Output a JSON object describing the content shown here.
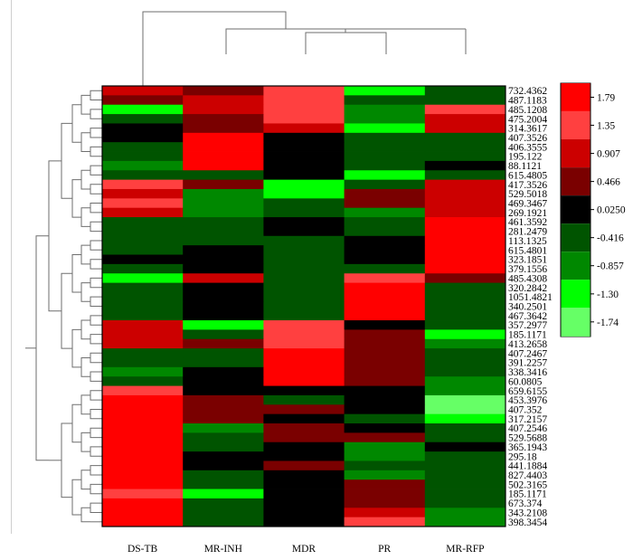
{
  "chart_data": {
    "type": "heatmap",
    "columns": [
      "DS-TB",
      "MR-INH",
      "MDR",
      "PR",
      "MR-RFP"
    ],
    "row_labels": [
      "732.4362",
      "487.1183",
      "485.1208",
      "475.2004",
      "314.3617",
      "407.3526",
      "406.3555",
      "195.122",
      "88.1121",
      "615.4805",
      "417.3526",
      "529.5018",
      "469.3467",
      "269.1921",
      "461.3592",
      "281.2479",
      "113.1325",
      "615.4801",
      "323.1851",
      "379.1556",
      "485.4308",
      "320.2842",
      "1051.4821",
      "340.2501",
      "467.3642",
      "357.2977",
      "185.1171",
      "413.2658",
      "407.2467",
      "391.2257",
      "338.3416",
      "60.0805",
      "659.6155",
      "453.3976",
      "407.352",
      "317.2157",
      "407.2546",
      "529.5688",
      "365.1943",
      "295.18",
      "441.1884",
      "827.4403",
      "502.3165",
      "185.1171",
      "673.374",
      "343.2108",
      "398.3454"
    ],
    "color_scale": {
      "breaks": [
        "1.79",
        "1.35",
        "0.907",
        "0.466",
        "0.0250",
        "-0.416",
        "-0.857",
        "-1.30",
        "-1.74"
      ],
      "colors": [
        "#ff0000",
        "#ff4040",
        "#cc0000",
        "#7a0000",
        "#000000",
        "#005400",
        "#008800",
        "#00ff00",
        "#66ff66"
      ],
      "value_range": [
        -1.97,
        2.01
      ]
    },
    "values": [
      [
        0.9,
        0.45,
        1.3,
        -1.5,
        -0.5
      ],
      [
        0.45,
        0.9,
        1.3,
        -0.5,
        -0.45
      ],
      [
        -1.5,
        0.9,
        1.3,
        -0.9,
        1.3
      ],
      [
        -0.5,
        0.45,
        1.3,
        -1.0,
        0.9
      ],
      [
        0.0,
        0.45,
        0.9,
        -1.5,
        0.9
      ],
      [
        0.0,
        1.8,
        0.0,
        -0.5,
        -0.45
      ],
      [
        -0.5,
        1.8,
        0.0,
        -0.5,
        -0.5
      ],
      [
        -0.5,
        1.8,
        0.0,
        -0.5,
        -0.5
      ],
      [
        -0.9,
        1.8,
        0.0,
        -0.5,
        0.0
      ],
      [
        -0.5,
        -0.5,
        0.0,
        -1.5,
        -0.5
      ],
      [
        1.3,
        0.45,
        -1.5,
        -0.5,
        0.9
      ],
      [
        0.9,
        -0.9,
        -1.5,
        0.45,
        0.9
      ],
      [
        1.3,
        -0.9,
        -0.5,
        0.45,
        0.9
      ],
      [
        0.9,
        -0.9,
        -0.5,
        -0.9,
        0.9
      ],
      [
        -0.5,
        -0.5,
        0.0,
        -0.5,
        1.8
      ],
      [
        -0.5,
        -0.5,
        0.0,
        -0.5,
        1.8
      ],
      [
        -0.5,
        -0.5,
        -0.5,
        0.0,
        1.8
      ],
      [
        -0.5,
        0.0,
        -0.5,
        0.0,
        1.8
      ],
      [
        0.0,
        0.0,
        -0.5,
        0.0,
        1.8
      ],
      [
        -0.5,
        0.0,
        -0.5,
        -0.5,
        1.8
      ],
      [
        -1.5,
        0.9,
        -0.5,
        1.3,
        0.45
      ],
      [
        -0.5,
        0.0,
        -0.5,
        1.8,
        -0.5
      ],
      [
        -0.5,
        0.0,
        -0.5,
        1.8,
        -0.5
      ],
      [
        -0.5,
        0.0,
        -0.5,
        1.8,
        -0.5
      ],
      [
        -0.5,
        0.0,
        -0.5,
        1.8,
        -0.5
      ],
      [
        0.9,
        -1.5,
        1.3,
        0.0,
        -0.5
      ],
      [
        0.9,
        -0.5,
        1.3,
        0.45,
        -1.3
      ],
      [
        0.9,
        0.45,
        1.3,
        0.45,
        -0.9
      ],
      [
        -0.5,
        -0.5,
        1.8,
        0.45,
        -0.5
      ],
      [
        -0.5,
        -0.5,
        1.8,
        0.45,
        -0.5
      ],
      [
        -0.9,
        0.0,
        1.8,
        0.45,
        -0.5
      ],
      [
        -0.5,
        0.0,
        1.8,
        0.45,
        -0.9
      ],
      [
        1.3,
        0.0,
        0.0,
        0.0,
        -0.9
      ],
      [
        1.8,
        0.45,
        -0.5,
        0.0,
        -1.6
      ],
      [
        1.8,
        0.45,
        0.45,
        0.0,
        -1.6
      ],
      [
        1.8,
        0.45,
        0.0,
        -0.5,
        -1.5
      ],
      [
        1.8,
        -0.9,
        0.45,
        0.0,
        -0.5
      ],
      [
        1.8,
        -0.5,
        0.45,
        0.45,
        -0.5
      ],
      [
        1.8,
        -0.5,
        0.0,
        -0.9,
        0.0
      ],
      [
        1.8,
        0.0,
        0.0,
        -0.9,
        -0.5
      ],
      [
        1.8,
        0.0,
        0.45,
        -0.5,
        -0.5
      ],
      [
        1.8,
        -0.5,
        0.0,
        -0.9,
        -0.5
      ],
      [
        1.8,
        -0.5,
        0.0,
        0.45,
        -0.5
      ],
      [
        1.3,
        -1.5,
        0.0,
        0.45,
        -0.5
      ],
      [
        1.8,
        -0.5,
        0.0,
        0.45,
        -0.5
      ],
      [
        1.8,
        -0.5,
        0.0,
        0.9,
        -0.9
      ],
      [
        1.8,
        -0.5,
        0.0,
        1.3,
        -0.9
      ]
    ]
  }
}
